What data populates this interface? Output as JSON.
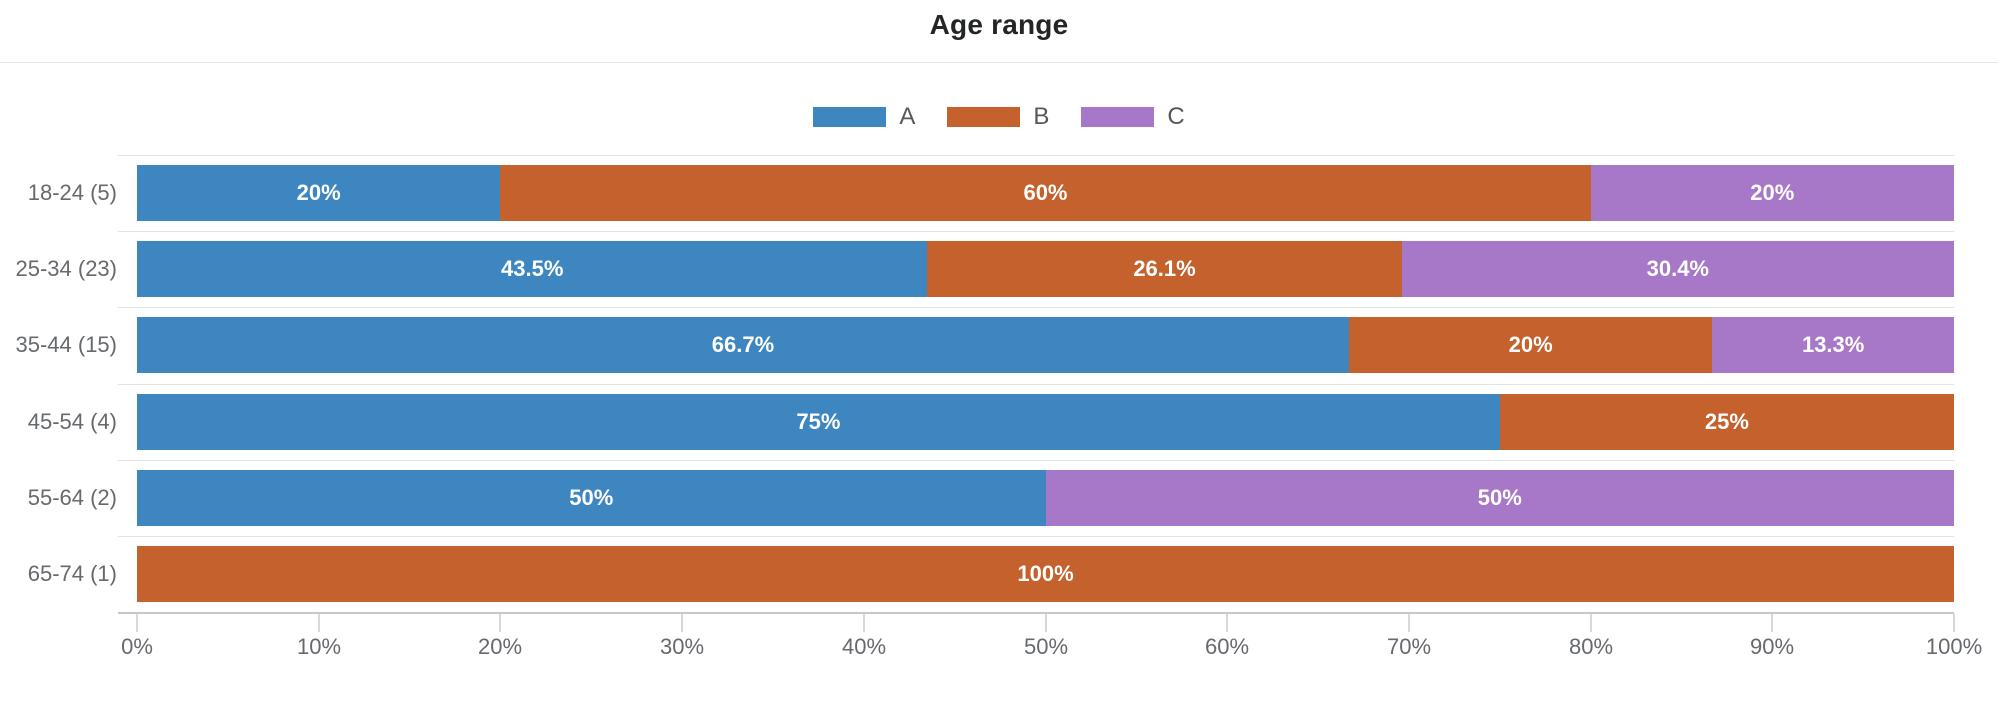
{
  "header": {
    "title": "Age range"
  },
  "legend": {
    "items": [
      {
        "label": "A",
        "color": "#3e86c0"
      },
      {
        "label": "B",
        "color": "#c4612d"
      },
      {
        "label": "C",
        "color": "#a678c7"
      }
    ]
  },
  "chart_data": {
    "type": "bar",
    "orientation": "horizontal",
    "stacked": true,
    "title": "Age range",
    "categories": [
      "18-24 (5)",
      "25-34 (23)",
      "35-44 (15)",
      "45-54 (4)",
      "55-64 (2)",
      "65-74 (1)"
    ],
    "series": [
      {
        "name": "A",
        "color": "#3e86c0",
        "values": [
          20,
          43.5,
          66.7,
          75,
          50,
          0
        ],
        "labels": [
          "20%",
          "43.5%",
          "66.7%",
          "75%",
          "50%",
          ""
        ]
      },
      {
        "name": "B",
        "color": "#c4612d",
        "values": [
          60,
          26.1,
          20,
          25,
          0,
          100
        ],
        "labels": [
          "60%",
          "26.1%",
          "20%",
          "25%",
          "",
          "100%"
        ]
      },
      {
        "name": "C",
        "color": "#a678c7",
        "values": [
          20,
          30.4,
          13.3,
          0,
          50,
          0
        ],
        "labels": [
          "20%",
          "30.4%",
          "13.3%",
          "",
          "50%",
          ""
        ]
      }
    ],
    "xlim": [
      0,
      100
    ],
    "x_ticks": [
      "0%",
      "10%",
      "20%",
      "30%",
      "40%",
      "50%",
      "60%",
      "70%",
      "80%",
      "90%",
      "100%"
    ],
    "legend_position": "top-center",
    "grid": "horizontal-band-lines",
    "value_label_color": "#ffffff",
    "axis_label_color": "#66696d"
  }
}
